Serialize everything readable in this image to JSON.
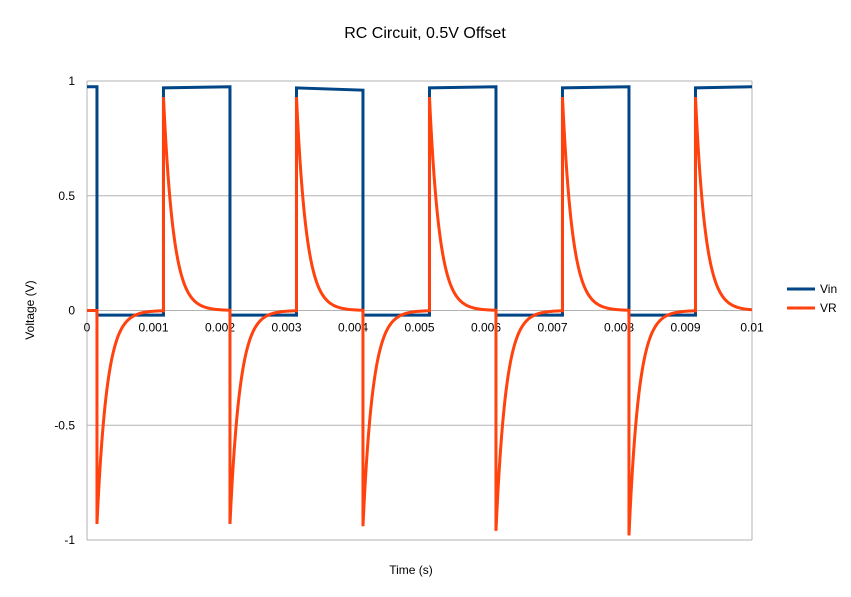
{
  "chart_data": {
    "type": "line",
    "title": "RC Circuit, 0.5V Offset",
    "xlabel": "Time (s)",
    "ylabel": "Voltage (V)",
    "xlim": [
      0,
      0.01
    ],
    "ylim": [
      -1,
      1
    ],
    "x_ticks": [
      "0",
      "0.001",
      "0.002",
      "0.003",
      "0.004",
      "0.005",
      "0.006",
      "0.007",
      "0.008",
      "0.009",
      "0.01"
    ],
    "y_ticks": [
      "1",
      "0.5",
      "0",
      "-0.5",
      "-1"
    ],
    "grid": "horizontal",
    "legend_position": "right",
    "colors": {
      "Vin": "#004586",
      "VR": "#ff420e"
    },
    "series": [
      {
        "name": "Vin",
        "points": [
          [
            0,
            0.975
          ],
          [
            0.00015,
            0.975
          ],
          [
            0.00015,
            -0.02
          ],
          [
            0.00115,
            -0.02
          ],
          [
            0.00115,
            0.97
          ],
          [
            0.00215,
            0.975
          ],
          [
            0.00215,
            -0.02
          ],
          [
            0.00315,
            -0.02
          ],
          [
            0.00315,
            0.97
          ],
          [
            0.00415,
            0.96
          ],
          [
            0.00415,
            -0.02
          ],
          [
            0.00515,
            -0.02
          ],
          [
            0.00515,
            0.97
          ],
          [
            0.00615,
            0.975
          ],
          [
            0.00615,
            -0.02
          ],
          [
            0.00715,
            -0.02
          ],
          [
            0.00715,
            0.97
          ],
          [
            0.00815,
            0.975
          ],
          [
            0.00815,
            -0.02
          ],
          [
            0.00915,
            -0.02
          ],
          [
            0.00915,
            0.97
          ],
          [
            0.01,
            0.975
          ]
        ]
      },
      {
        "name": "VR",
        "edges": [
          [
            0.00015,
            -0.93
          ],
          [
            0.00115,
            0.93
          ],
          [
            0.00215,
            -0.93
          ],
          [
            0.00315,
            0.93
          ],
          [
            0.00415,
            -0.94
          ],
          [
            0.00515,
            0.93
          ],
          [
            0.00615,
            -0.96
          ],
          [
            0.00715,
            0.93
          ],
          [
            0.00815,
            -0.98
          ],
          [
            0.00915,
            0.93
          ]
        ],
        "time_constant": 0.00015
      }
    ]
  }
}
